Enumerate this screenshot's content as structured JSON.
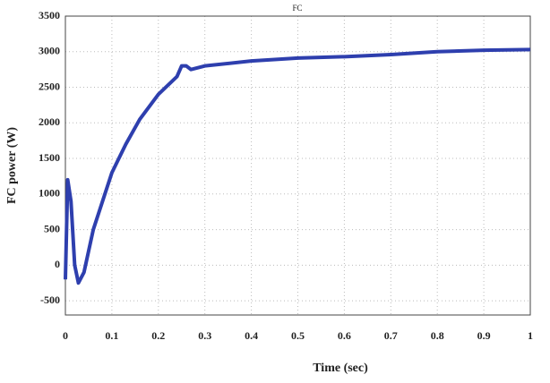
{
  "chart_data": {
    "type": "line",
    "title": "FC",
    "xlabel": "Time (sec)",
    "ylabel": "FC power (W)",
    "x": [
      0,
      0.005,
      0.012,
      0.02,
      0.028,
      0.04,
      0.06,
      0.08,
      0.1,
      0.13,
      0.16,
      0.2,
      0.24,
      0.25,
      0.26,
      0.27,
      0.3,
      0.4,
      0.5,
      0.6,
      0.7,
      0.8,
      0.9,
      1.0
    ],
    "series": [
      {
        "name": "FC power",
        "color": "#2e3fae",
        "values": [
          -200,
          1200,
          900,
          0,
          -250,
          -100,
          500,
          900,
          1300,
          1700,
          2050,
          2400,
          2650,
          2800,
          2800,
          2750,
          2800,
          2870,
          2910,
          2930,
          2960,
          3000,
          3020,
          3030
        ]
      }
    ],
    "xlim": [
      0,
      1
    ],
    "xticks": [
      0,
      0.1,
      0.2,
      0.3,
      0.4,
      0.5,
      0.6,
      0.7,
      0.8,
      0.9,
      1
    ],
    "ylim": [
      -700,
      3500
    ],
    "yticks": [
      -500,
      0,
      500,
      1000,
      1500,
      2000,
      2500,
      3000,
      3500
    ],
    "grid": true
  }
}
